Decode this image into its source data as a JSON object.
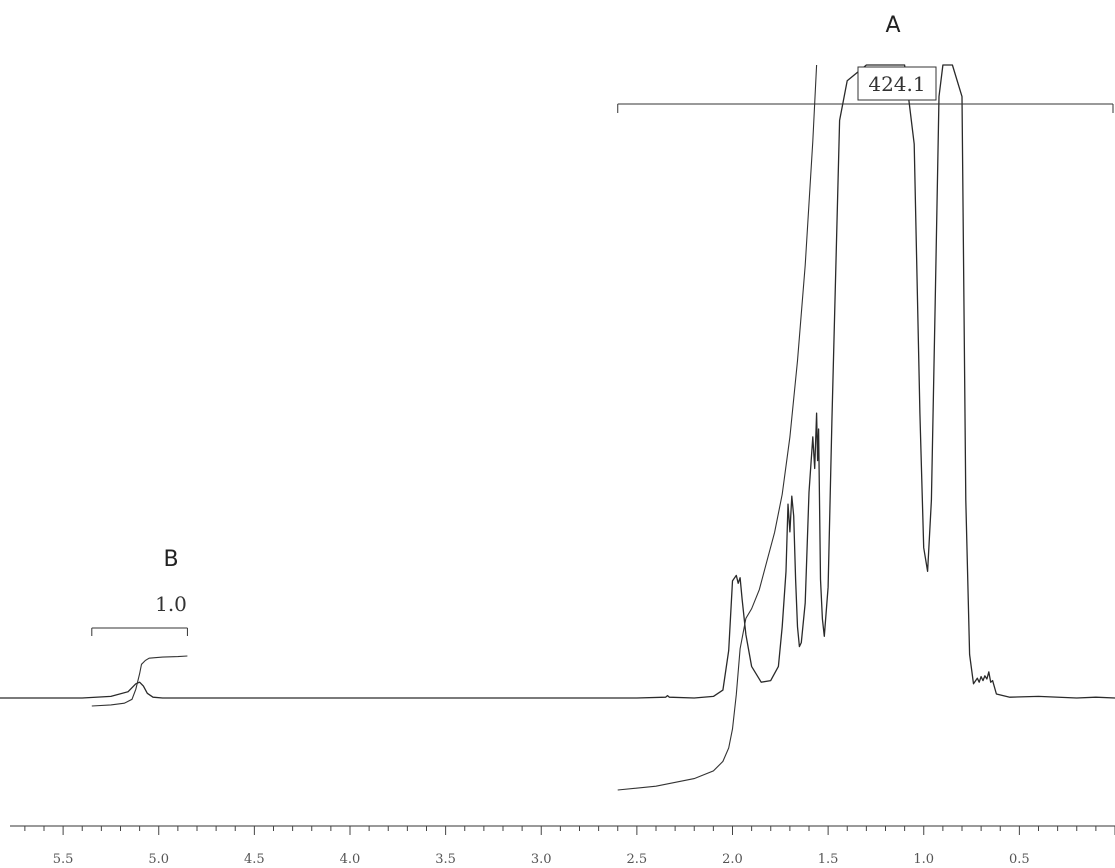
{
  "chart_data": {
    "type": "line",
    "title": "",
    "xlabel": "",
    "ylabel": "",
    "x_reversed": true,
    "xlim": [
      5.83,
      0.0
    ],
    "ticks": {
      "major": [
        5.5,
        5.0,
        4.5,
        4.0,
        3.5,
        3.0,
        2.5,
        2.0,
        1.5,
        1.0,
        0.5
      ],
      "labels": [
        "5.5",
        "5.0",
        "4.5",
        "4.0",
        "3.5",
        "3.0",
        "2.5",
        "2.0",
        "1.5",
        "1.0",
        "0.5"
      ],
      "minor_step": 0.1
    },
    "series": [
      {
        "kind": "spectrum",
        "x": [
          5.83,
          5.4,
          5.25,
          5.16,
          5.12,
          5.1,
          5.08,
          5.06,
          5.03,
          4.98,
          4.5,
          4.0,
          3.5,
          3.0,
          2.5,
          2.35,
          2.34,
          2.33,
          2.2,
          2.1,
          2.05,
          2.02,
          2.0,
          1.98,
          1.97,
          1.96,
          1.95,
          1.93,
          1.9,
          1.85,
          1.8,
          1.76,
          1.74,
          1.72,
          1.71,
          1.7,
          1.69,
          1.68,
          1.67,
          1.66,
          1.65,
          1.64,
          1.62,
          1.6,
          1.58,
          1.57,
          1.56,
          1.555,
          1.55,
          1.545,
          1.54,
          1.53,
          1.52,
          1.5,
          1.48,
          1.44,
          1.4,
          1.3,
          1.2,
          1.1,
          1.05,
          1.02,
          1.0,
          0.98,
          0.96,
          0.94,
          0.92,
          0.9,
          0.85,
          0.8,
          0.78,
          0.76,
          0.74,
          0.72,
          0.71,
          0.7,
          0.69,
          0.68,
          0.67,
          0.66,
          0.65,
          0.64,
          0.62,
          0.55,
          0.4,
          0.2,
          0.1,
          0.0
        ],
        "y": [
          0.0,
          0.0,
          0.02,
          0.08,
          0.18,
          0.2,
          0.15,
          0.06,
          0.01,
          0.0,
          0.0,
          0.0,
          0.0,
          0.0,
          0.0,
          0.01,
          0.03,
          0.01,
          0.0,
          0.02,
          0.1,
          0.6,
          1.48,
          1.55,
          1.45,
          1.52,
          1.25,
          0.8,
          0.4,
          0.2,
          0.22,
          0.4,
          0.9,
          1.6,
          2.45,
          2.1,
          2.55,
          2.3,
          1.5,
          0.9,
          0.65,
          0.7,
          1.2,
          2.6,
          3.3,
          2.9,
          3.6,
          3.0,
          3.4,
          2.5,
          1.5,
          1.0,
          0.78,
          1.4,
          3.5,
          7.3,
          7.8,
          8.0,
          8.0,
          8.0,
          7.0,
          3.6,
          1.9,
          1.6,
          2.5,
          5.0,
          7.6,
          8.0,
          8.0,
          7.6,
          2.5,
          0.55,
          0.18,
          0.25,
          0.2,
          0.27,
          0.22,
          0.28,
          0.24,
          0.33,
          0.2,
          0.22,
          0.05,
          0.01,
          0.02,
          0.0,
          0.01,
          0.0
        ],
        "ylim": [
          -0.55,
          8.0
        ]
      },
      {
        "kind": "integral",
        "x": [
          5.35,
          5.25,
          5.18,
          5.14,
          5.12,
          5.1,
          5.09,
          5.07,
          5.05,
          5.02,
          4.98,
          4.9,
          4.85
        ],
        "y": [
          0.0,
          0.02,
          0.05,
          0.12,
          0.3,
          0.58,
          0.75,
          0.82,
          0.86,
          0.87,
          0.88,
          0.89,
          0.9
        ],
        "ylim": [
          -0.05,
          1.3
        ]
      },
      {
        "kind": "integral",
        "x": [
          2.6,
          2.4,
          2.2,
          2.1,
          2.05,
          2.02,
          2.0,
          1.98,
          1.96,
          1.93,
          1.9,
          1.86,
          1.82,
          1.78,
          1.74,
          1.7,
          1.66,
          1.62,
          1.58,
          1.56
        ],
        "y": [
          0.0,
          0.02,
          0.06,
          0.1,
          0.15,
          0.22,
          0.32,
          0.5,
          0.74,
          0.9,
          0.95,
          1.05,
          1.2,
          1.35,
          1.55,
          1.85,
          2.25,
          2.75,
          3.4,
          3.8
        ],
        "ylim": [
          0.0,
          3.8
        ]
      }
    ],
    "annotations": {
      "region_a": {
        "label": "A",
        "value": "424.1",
        "x_range": [
          2.6,
          0.0
        ]
      },
      "region_b": {
        "label": "B",
        "value": "1.0",
        "x_range": [
          5.35,
          4.85
        ]
      }
    }
  }
}
